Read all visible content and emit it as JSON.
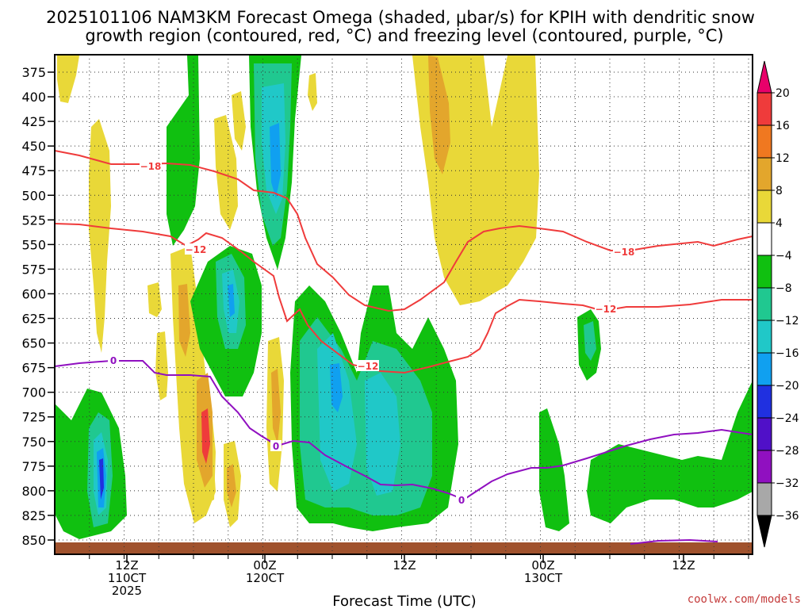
{
  "chart_data": {
    "type": "heatmap",
    "title_line1": "2025101106 NAM3KM Forecast Omega (shaded, μbar/s) for KPIH with dendritic snow",
    "title_line2": "growth region (contoured, red, °C) and freezing level (contoured, purple, °C)",
    "xlabel": "Forecast Time (UTC)",
    "credit": "coolwx.com/models",
    "y_ticks": [
      "375",
      "400",
      "425",
      "450",
      "475",
      "500",
      "525",
      "550",
      "575",
      "600",
      "625",
      "650",
      "675",
      "700",
      "725",
      "750",
      "775",
      "800",
      "825",
      "850"
    ],
    "x_ticks": [
      {
        "line1": "12Z",
        "line2": "110CT",
        "line3": "2025"
      },
      {
        "line1": "00Z",
        "line2": "120CT",
        "line3": ""
      },
      {
        "line1": "12Z",
        "line2": "",
        "line3": ""
      },
      {
        "line1": "00Z",
        "line2": "130CT",
        "line3": ""
      },
      {
        "line1": "12Z",
        "line2": "",
        "line3": ""
      }
    ],
    "colorbar": {
      "labels": [
        "20",
        "16",
        "12",
        "8",
        "4",
        "−4",
        "−8",
        "−12",
        "−16",
        "−20",
        "−24",
        "−28",
        "−32",
        "−36"
      ],
      "colors": [
        "#e8006a",
        "#ef3b3b",
        "#f07820",
        "#e3a62c",
        "#e9d838",
        "#ffffff",
        "#10c010",
        "#20c890",
        "#20c8c8",
        "#10a0f0",
        "#2030e0",
        "#5010c8",
        "#9010c0",
        "#a8a8a8",
        "#000000"
      ]
    },
    "contours": {
      "red_labels": [
        "−18",
        "−12",
        "−12",
        "−18",
        "−12"
      ],
      "purple_labels": [
        "0",
        "0",
        "0"
      ]
    },
    "colors": {
      "dgz_contour": "#ef3b3b",
      "freezing_contour": "#9010c0",
      "terrain": "#a0522d"
    }
  }
}
